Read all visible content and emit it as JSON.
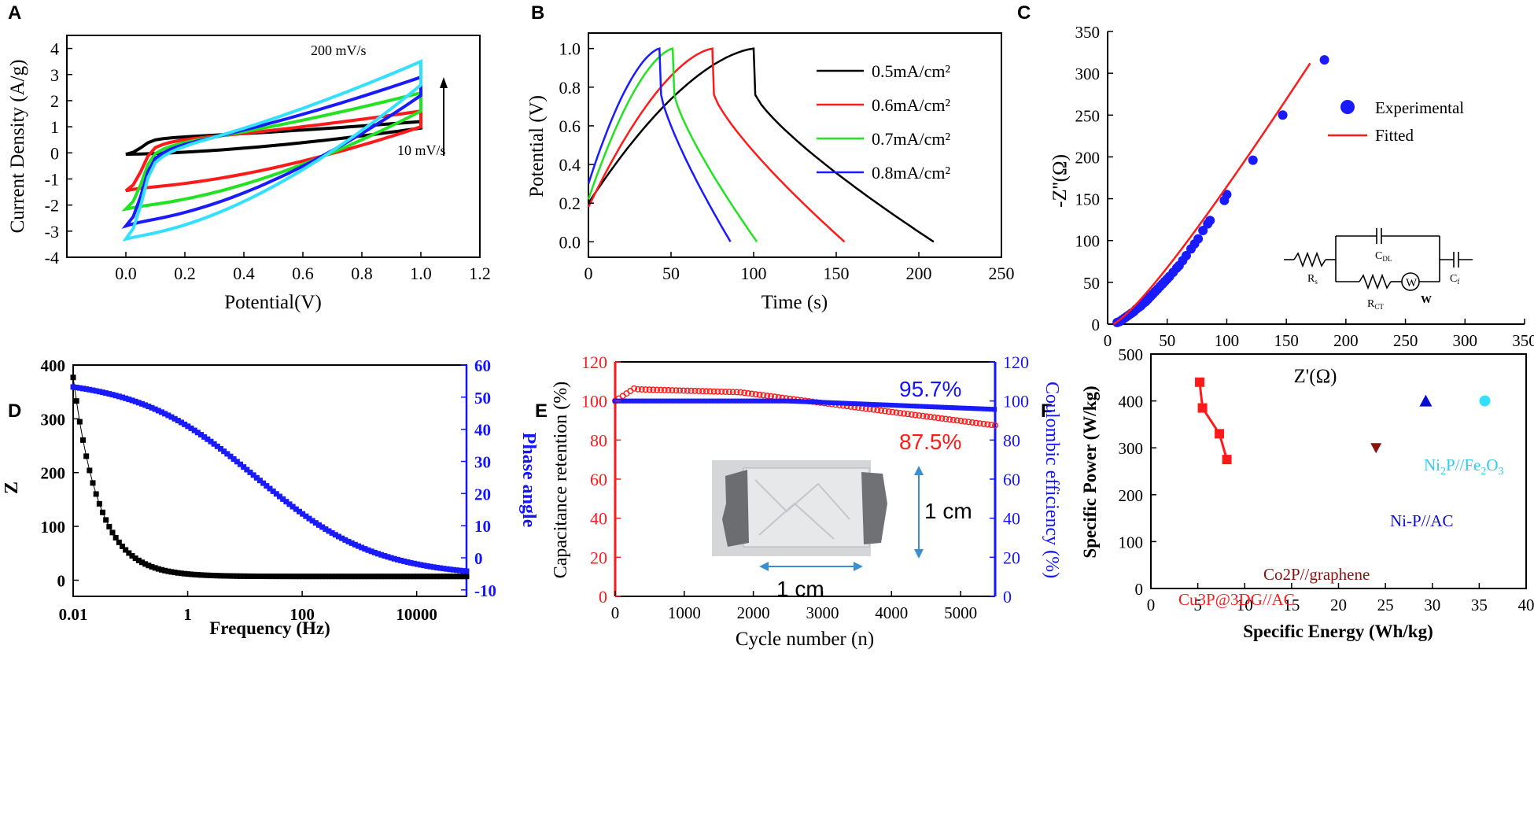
{
  "colors": {
    "black": "#000000",
    "red": "#ff1a1a",
    "green": "#22e222",
    "blue": "#1a1aff",
    "cyan": "#33e0ff",
    "navy": "#0b0bd8",
    "darkred": "#8b1010",
    "axisBlue": "#1414ff"
  },
  "chart_data": [
    {
      "panel": "A",
      "type": "line",
      "xlabel": "Potential(V)",
      "ylabel": "Current Density (A/g)",
      "xlim": [
        -0.2,
        1.2
      ],
      "ylim": [
        -4,
        4.5
      ],
      "xticks": [
        "0.0",
        "0.2",
        "0.4",
        "0.6",
        "0.8",
        "1.0",
        "1.2"
      ],
      "yticks": [
        "-4",
        "-3",
        "-2",
        "-1",
        "0",
        "1",
        "2",
        "3",
        "4"
      ],
      "annotations": {
        "high": "200 mV/s",
        "low": "10 mV/s"
      },
      "series": [
        {
          "name": "10 mV/s",
          "color": "black",
          "loop": {
            "topStart": 0.55,
            "topEnd": 1.2,
            "botStart": -0.05,
            "botEnd": 0.95,
            "start": -0.05,
            "end": 1.2
          }
        },
        {
          "name": "red",
          "color": "red",
          "loop": {
            "topStart": 0.4,
            "topEnd": 1.6,
            "botStart": -1.35,
            "botEnd": 1.0,
            "start": -1.45,
            "end": 1.4
          }
        },
        {
          "name": "green",
          "color": "green",
          "loop": {
            "topStart": 0.2,
            "topEnd": 2.3,
            "botStart": -2.05,
            "botEnd": 1.6,
            "start": -2.15,
            "end": 2.2
          }
        },
        {
          "name": "blue",
          "color": "blue",
          "loop": {
            "topStart": 0.05,
            "topEnd": 2.9,
            "botStart": -2.65,
            "botEnd": 2.2,
            "start": -2.8,
            "end": 2.9
          }
        },
        {
          "name": "200 mV/s",
          "color": "cyan",
          "loop": {
            "topStart": -0.1,
            "topEnd": 3.5,
            "botStart": -3.2,
            "botEnd": 2.6,
            "start": -3.3,
            "end": 3.5
          }
        }
      ]
    },
    {
      "panel": "B",
      "type": "line",
      "xlabel": "Time (s)",
      "ylabel": "Potential (V)",
      "xlim": [
        0,
        250
      ],
      "ylim": [
        -0.08,
        1.08
      ],
      "xticks": [
        "0",
        "50",
        "100",
        "150",
        "200",
        "250"
      ],
      "yticks": [
        "0.0",
        "0.2",
        "0.4",
        "0.6",
        "0.8",
        "1.0"
      ],
      "legend": [
        "0.5mA/cm²",
        "0.6mA/cm²",
        "0.7mA/cm²",
        "0.8mA/cm²"
      ],
      "series": [
        {
          "name": "0.5mA/cm2",
          "color": "black",
          "start": 0.2,
          "peak_t": 100,
          "end_t": 209
        },
        {
          "name": "0.6mA/cm2",
          "color": "red",
          "start": 0.18,
          "peak_t": 75,
          "end_t": 155
        },
        {
          "name": "0.7mA/cm2",
          "color": "green",
          "start": 0.22,
          "peak_t": 51,
          "end_t": 102
        },
        {
          "name": "0.8mA/cm2",
          "color": "blue",
          "start": 0.3,
          "peak_t": 43,
          "end_t": 86
        }
      ]
    },
    {
      "panel": "C",
      "type": "scatter",
      "xlabel": "Z'(Ω)",
      "ylabel": "-Z''(Ω)",
      "xlim": [
        0,
        350
      ],
      "ylim": [
        0,
        350
      ],
      "xticks": [
        "0",
        "50",
        "100",
        "150",
        "200",
        "250",
        "300",
        "350"
      ],
      "yticks": [
        "0",
        "50",
        "100",
        "150",
        "200",
        "250",
        "300",
        "350"
      ],
      "legend": [
        "Experimental",
        "Fitted"
      ],
      "circuit": {
        "Rs": "R",
        "Rs_sub": "s",
        "Cdl": "C",
        "Cdl_sub": "DL",
        "Rct": "R",
        "Rct_sub": "CT",
        "W": "W",
        "Cf": "C",
        "Cf_sub": "f"
      },
      "points": [
        [
          8,
          2
        ],
        [
          10,
          3
        ],
        [
          12,
          5
        ],
        [
          14,
          7
        ],
        [
          16,
          9
        ],
        [
          18,
          11
        ],
        [
          20,
          13
        ],
        [
          22,
          15
        ],
        [
          24,
          18
        ],
        [
          26,
          20
        ],
        [
          28,
          22
        ],
        [
          30,
          25
        ],
        [
          32,
          27
        ],
        [
          34,
          30
        ],
        [
          36,
          33
        ],
        [
          38,
          36
        ],
        [
          40,
          39
        ],
        [
          42,
          42
        ],
        [
          44,
          45
        ],
        [
          46,
          48
        ],
        [
          48,
          51
        ],
        [
          50,
          54
        ],
        [
          52,
          57
        ],
        [
          55,
          62
        ],
        [
          58,
          67
        ],
        [
          60,
          70
        ],
        [
          63,
          76
        ],
        [
          66,
          82
        ],
        [
          70,
          90
        ],
        [
          73,
          96
        ],
        [
          76,
          102
        ],
        [
          80,
          112
        ],
        [
          84,
          120
        ],
        [
          86,
          124
        ],
        [
          98,
          148
        ],
        [
          100,
          155
        ],
        [
          122,
          196
        ],
        [
          147,
          250
        ],
        [
          182,
          316
        ]
      ],
      "fit": [
        [
          5,
          0
        ],
        [
          170,
          312
        ]
      ]
    },
    {
      "panel": "D",
      "type": "line",
      "xlabel": "Frequency (Hz)",
      "ylabel": "Z",
      "y2label": "Phase angle",
      "xlim_log": [
        0.01,
        100000
      ],
      "ylim": [
        -30,
        400
      ],
      "y2lim": [
        -12,
        60
      ],
      "xticks": [
        "0.01",
        "1",
        "100",
        "10000"
      ],
      "yticks": [
        "0",
        "100",
        "200",
        "300",
        "400"
      ],
      "y2ticks": [
        "-10",
        "0",
        "10",
        "20",
        "30",
        "40",
        "50",
        "60"
      ]
    },
    {
      "panel": "E",
      "type": "line",
      "xlabel": "Cycle number (n)",
      "ylabel": "Capacitance retention (%)",
      "y2label": "Coulombic efficiency (%)",
      "xlim": [
        0,
        5500
      ],
      "ylim": [
        0,
        120
      ],
      "y2lim": [
        0,
        120
      ],
      "xticks": [
        "0",
        "1000",
        "2000",
        "3000",
        "4000",
        "5000"
      ],
      "yticks": [
        "0",
        "20",
        "40",
        "60",
        "80",
        "100",
        "120"
      ],
      "y2ticks": [
        "0",
        "20",
        "40",
        "60",
        "80",
        "100",
        "120"
      ],
      "annotations": {
        "coulombic": "95.7%",
        "retention": "87.5%",
        "width": "1 cm",
        "height": "1 cm"
      }
    },
    {
      "panel": "F",
      "type": "scatter",
      "xlabel": "Specific Energy (Wh/kg)",
      "ylabel": "Specific Power (W/kg)",
      "xlim": [
        0,
        40
      ],
      "ylim": [
        0,
        500
      ],
      "xticks": [
        "0",
        "5",
        "10",
        "15",
        "20",
        "25",
        "30",
        "35",
        "40"
      ],
      "yticks": [
        "0",
        "100",
        "200",
        "300",
        "400",
        "500"
      ],
      "series": [
        {
          "name": "Cu3P@3DG//AC",
          "color": "red",
          "points": [
            [
              5.2,
              440
            ],
            [
              5.5,
              385
            ],
            [
              7.3,
              330
            ],
            [
              8.1,
              275
            ]
          ]
        },
        {
          "name": "Co2P//graphene",
          "color": "darkred",
          "points": [
            [
              24,
              300
            ]
          ]
        },
        {
          "name": "Ni-P//AC",
          "color": "navy",
          "points": [
            [
              29.3,
              400
            ]
          ]
        },
        {
          "name": "Ni2P//Fe2O3",
          "color": "cyan",
          "points": [
            [
              35.6,
              400
            ]
          ]
        }
      ],
      "labels": {
        "cu3p": "Cu3P@3DG//AC",
        "co2p": "Co2P//graphene",
        "nip": "Ni-P//AC",
        "ni2p_pre": "Ni",
        "ni2p_a": "2",
        "ni2p_mid": "P//Fe",
        "ni2p_b": "2",
        "ni2p_c": "O",
        "ni2p_d": "3"
      }
    }
  ],
  "panel_letters": [
    "A",
    "B",
    "C",
    "D",
    "E",
    "F"
  ]
}
